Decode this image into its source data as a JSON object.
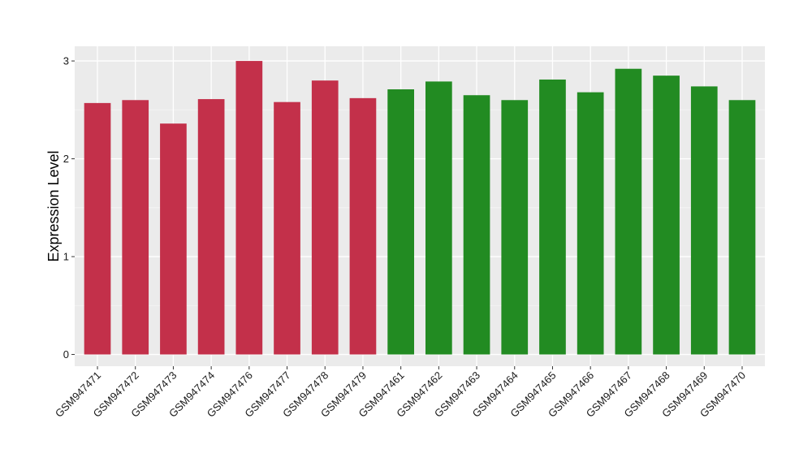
{
  "chart_data": {
    "type": "bar",
    "xlabel": "",
    "ylabel": "Expression Level",
    "ylim": [
      -0.12,
      3.15
    ],
    "yticks": [
      0,
      1,
      2,
      3
    ],
    "y_tick_labels": [
      "0",
      "1",
      "2",
      "3"
    ],
    "grid": true,
    "panel_background": "#ebebeb",
    "categories": [
      "GSM947471",
      "GSM947472",
      "GSM947473",
      "GSM947474",
      "GSM947476",
      "GSM947477",
      "GSM947478",
      "GSM947479",
      "GSM947461",
      "GSM947462",
      "GSM947463",
      "GSM947464",
      "GSM947465",
      "GSM947466",
      "GSM947467",
      "GSM947468",
      "GSM947469",
      "GSM947470"
    ],
    "values": [
      2.57,
      2.6,
      2.36,
      2.61,
      3.0,
      2.58,
      2.8,
      2.62,
      2.71,
      2.79,
      2.65,
      2.6,
      2.81,
      2.68,
      2.92,
      2.85,
      2.74,
      2.6
    ],
    "bar_colors": [
      "#c3304a",
      "#c3304a",
      "#c3304a",
      "#c3304a",
      "#c3304a",
      "#c3304a",
      "#c3304a",
      "#c3304a",
      "#228b22",
      "#228b22",
      "#228b22",
      "#228b22",
      "#228b22",
      "#228b22",
      "#228b22",
      "#228b22",
      "#228b22",
      "#228b22"
    ]
  }
}
